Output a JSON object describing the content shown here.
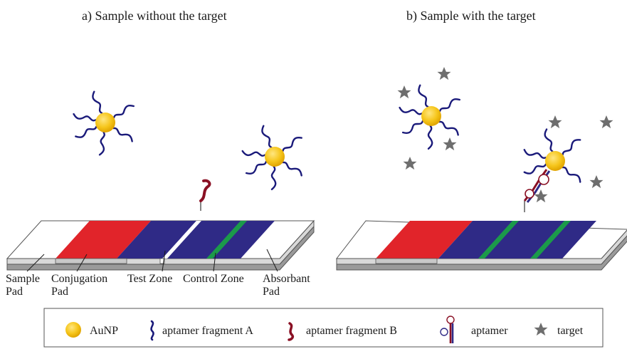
{
  "panels": {
    "a_title": "a) Sample without the target",
    "b_title": "b) Sample with the target"
  },
  "strip_labels": {
    "sample_pad_1": "Sample",
    "sample_pad_2": "Pad",
    "conjugation_pad_1": "Conjugation",
    "conjugation_pad_2": "Pad",
    "test_zone": "Test Zone",
    "control_zone": "Control Zone",
    "absorbant_pad_1": "Absorbant",
    "absorbant_pad_2": "Pad"
  },
  "legend": {
    "aunp": "AuNP",
    "fragment_a": "aptamer fragment A",
    "fragment_b": "aptamer fragment B",
    "aptamer": "aptamer",
    "target": "target"
  },
  "colors": {
    "conjugation_pad": "#e1242a",
    "strip_zone": "#2f2a86",
    "green_line": "#1b9a4a",
    "aunp": "#f6c61c",
    "fragment_a": "#1a1a7a",
    "fragment_b": "#8a1024",
    "target": "#6e6e6e"
  }
}
